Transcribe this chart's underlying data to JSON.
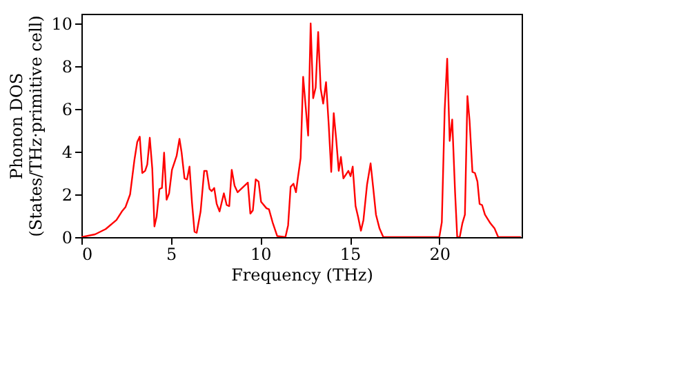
{
  "chart_data": {
    "type": "line",
    "xlabel": "Frequency (THz)",
    "ylabel": "Phonon DOS\n(States/THz·primitive cell)",
    "xlim": [
      0,
      24.6
    ],
    "ylim": [
      0,
      10.45
    ],
    "xticks": [
      0,
      5,
      10,
      15,
      20
    ],
    "yticks": [
      0,
      2,
      4,
      6,
      8,
      10
    ],
    "grid": false,
    "line_style": "solid",
    "marker": "none",
    "series": [
      {
        "color": "#ff0000",
        "x": [
          0,
          0.76,
          1.36,
          1.96,
          2.26,
          2.46,
          2.72,
          2.96,
          3.12,
          3.26,
          3.4,
          3.56,
          3.68,
          3.82,
          3.96,
          4.08,
          4.2,
          4.36,
          4.5,
          4.62,
          4.76,
          4.9,
          5.06,
          5.32,
          5.48,
          5.6,
          5.76,
          5.9,
          6.04,
          6.18,
          6.32,
          6.44,
          6.66,
          6.86,
          7.0,
          7.16,
          7.28,
          7.42,
          7.56,
          7.72,
          7.96,
          8.12,
          8.26,
          8.4,
          8.56,
          8.73,
          9.3,
          9.44,
          9.58,
          9.74,
          9.9,
          10.04,
          10.34,
          10.48,
          10.68,
          10.94,
          11.4,
          11.55,
          11.69,
          11.85,
          11.99,
          12.1,
          12.25,
          12.39,
          12.67,
          12.81,
          12.95,
          13.09,
          13.23,
          13.37,
          13.51,
          13.67,
          13.82,
          13.96,
          14.1,
          14.24,
          14.38,
          14.5,
          14.64,
          14.92,
          15.04,
          15.16,
          15.32,
          15.46,
          15.62,
          15.76,
          15.96,
          16.16,
          16.3,
          16.46,
          16.66,
          16.87,
          20.0,
          20.14,
          20.3,
          20.44,
          20.58,
          20.72,
          20.88,
          21.0,
          21.14,
          21.29,
          21.43,
          21.57,
          21.69,
          21.85,
          21.99,
          22.13,
          22.25,
          22.39,
          22.55,
          22.85,
          23.09,
          23.29,
          24.56
        ],
        "values": [
          0,
          0.13,
          0.38,
          0.8,
          1.2,
          1.4,
          2.0,
          3.6,
          4.45,
          4.7,
          3.0,
          3.1,
          3.4,
          4.65,
          3.2,
          0.5,
          0.95,
          2.25,
          2.3,
          3.95,
          1.75,
          2.05,
          3.15,
          3.8,
          4.6,
          3.95,
          2.75,
          2.7,
          3.3,
          1.6,
          0.25,
          0.2,
          1.2,
          3.1,
          3.1,
          2.25,
          2.15,
          2.3,
          1.55,
          1.2,
          2.05,
          1.5,
          1.45,
          3.15,
          2.4,
          2.1,
          2.55,
          1.1,
          1.25,
          2.7,
          2.6,
          1.65,
          1.35,
          1.3,
          0.7,
          0.05,
          0,
          0.55,
          2.35,
          2.5,
          2.1,
          2.8,
          3.7,
          7.5,
          4.75,
          10.0,
          6.5,
          7.0,
          9.6,
          6.95,
          6.25,
          7.25,
          5.25,
          3.05,
          5.8,
          4.55,
          3.1,
          3.75,
          2.75,
          3.1,
          2.85,
          3.3,
          1.45,
          0.95,
          0.3,
          0.8,
          2.45,
          3.45,
          2.35,
          1.05,
          0.4,
          0,
          0,
          0.7,
          5.95,
          8.35,
          4.5,
          5.5,
          2.1,
          0,
          0,
          0.65,
          1.05,
          6.6,
          5.45,
          3.05,
          3.0,
          2.6,
          1.55,
          1.5,
          1.05,
          0.65,
          0.4,
          0,
          0
        ]
      }
    ]
  }
}
